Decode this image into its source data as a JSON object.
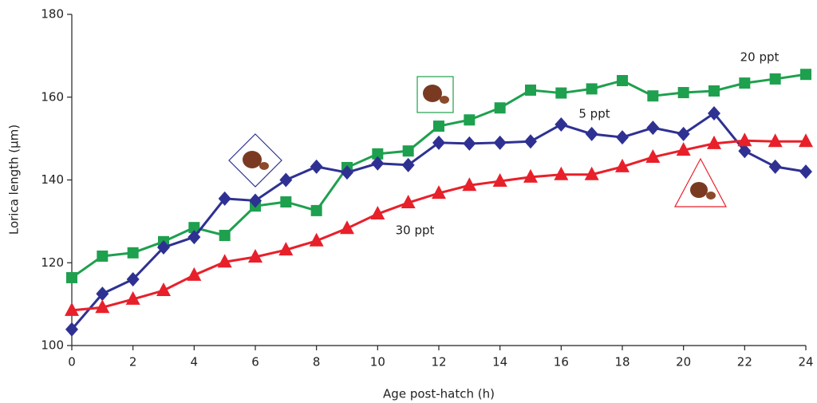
{
  "chart_data": {
    "type": "line",
    "x_label": "Age post-hatch (h)",
    "y_label": "Lorica length (µm)",
    "x": [
      0,
      1,
      2,
      3,
      4,
      5,
      6,
      7,
      8,
      9,
      10,
      11,
      12,
      13,
      14,
      15,
      16,
      17,
      18,
      19,
      20,
      21,
      22,
      23,
      24
    ],
    "series": [
      {
        "name": "20 ppt",
        "color": "#1ea04e",
        "marker": "square",
        "values": [
          116.4,
          121.6,
          122.4,
          125.1,
          128.5,
          126.6,
          133.7,
          134.7,
          132.6,
          143,
          146.3,
          147,
          153,
          154.5,
          157.4,
          161.7,
          161,
          162,
          164,
          160.3,
          161.1,
          161.5,
          163.4,
          164.4,
          165.5
        ]
      },
      {
        "name": "5 ppt",
        "color": "#2e3192",
        "marker": "diamond",
        "values": [
          103.9,
          112.5,
          116,
          123.7,
          126.2,
          135.5,
          135,
          140,
          143.2,
          141.8,
          144,
          143.6,
          149,
          148.8,
          149,
          149.3,
          153.4,
          151.1,
          150.3,
          152.6,
          151.1,
          156.1,
          147,
          143.2,
          142
        ]
      },
      {
        "name": "30 ppt",
        "color": "#e8202a",
        "marker": "triangle",
        "values": [
          108.5,
          109.2,
          111.2,
          113.3,
          117,
          120.2,
          121.4,
          123.1,
          125.3,
          128.3,
          131.8,
          134.5,
          136.8,
          138.7,
          139.7,
          140.7,
          141.3,
          141.3,
          143.2,
          145.5,
          147.2,
          148.8,
          149.5,
          149.3,
          149.3
        ]
      }
    ],
    "xlim": [
      0,
      24
    ],
    "xticks": [
      0,
      2,
      4,
      6,
      8,
      10,
      12,
      14,
      16,
      18,
      20,
      22,
      24
    ],
    "ylim": [
      100,
      180
    ],
    "yticks": [
      100,
      120,
      140,
      160,
      180
    ],
    "grid": false
  }
}
